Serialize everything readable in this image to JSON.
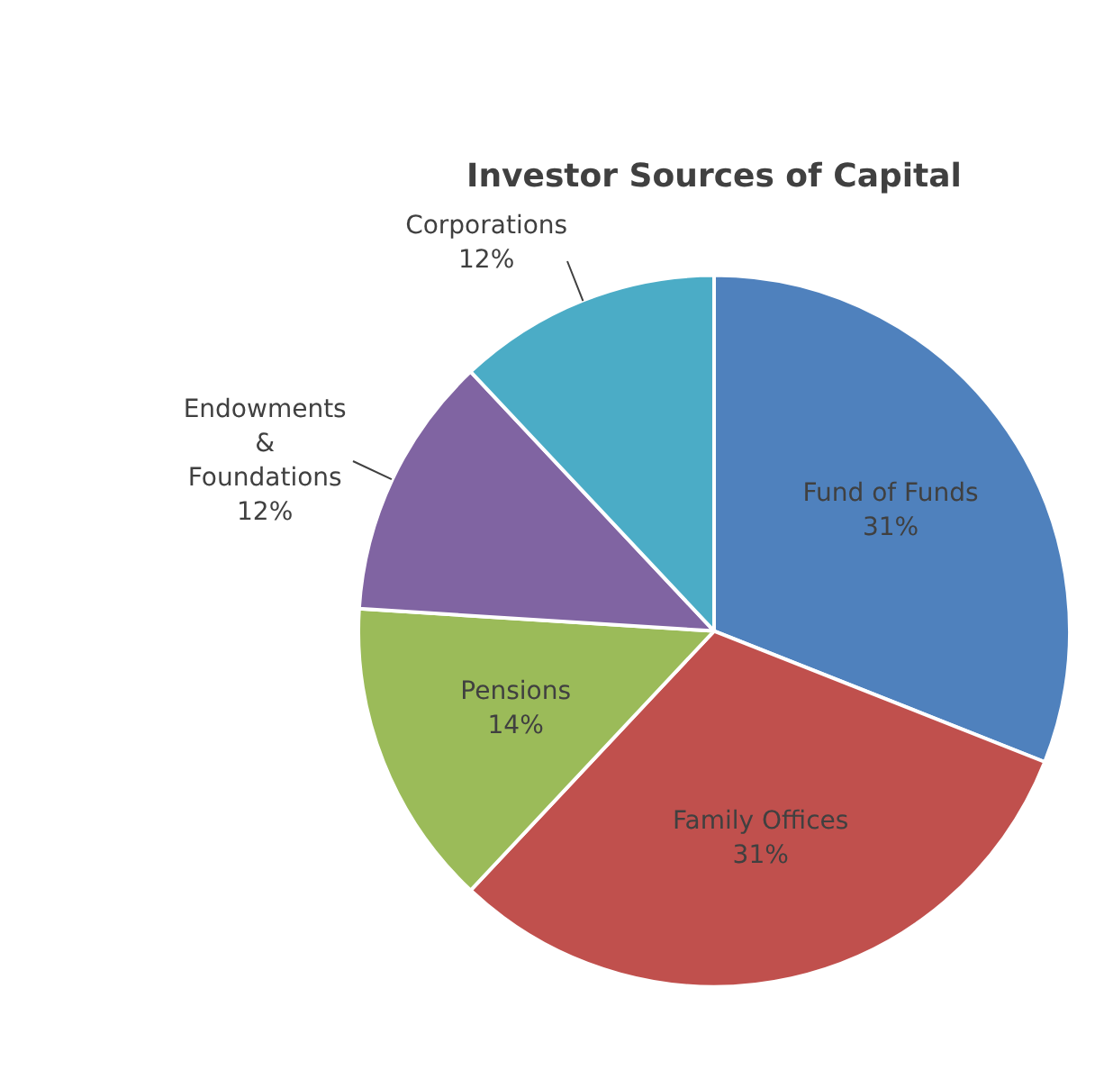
{
  "chart_data": {
    "type": "pie",
    "title": "Investor Sources of Capital",
    "categories": [
      "Fund of Funds",
      "Family Offices",
      "Pensions",
      "Endowments & Foundations",
      "Corporations"
    ],
    "values": [
      31,
      31,
      14,
      12,
      12
    ],
    "value_labels": [
      "31%",
      "31%",
      "14%",
      "12%",
      "12%"
    ],
    "colors": [
      "#4f81bd",
      "#c0504d",
      "#9bbb59",
      "#8064a2",
      "#4bacc6"
    ],
    "legend": false
  }
}
